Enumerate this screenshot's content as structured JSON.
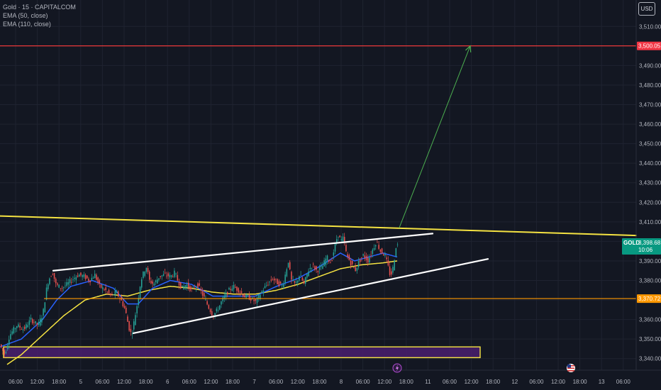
{
  "legend": {
    "symbol": "Gold · 15 · CAPITALCOM",
    "ema1": "EMA (50, close)",
    "ema2": "EMA (110, close)"
  },
  "currency_button": "USD",
  "colors": {
    "background": "#131722",
    "grid": "#1f2330",
    "bull": "#26a69a",
    "bear": "#ef5350",
    "ema50": "#2962ff",
    "ema110": "#f5e342",
    "trendline": "#ffffff",
    "resistance": "#f5e342",
    "target": "#ff3b3b",
    "support": "#ff9800",
    "arrow": "#4caf50",
    "zone": "#4a1f6e"
  },
  "chart_data": {
    "type": "candlestick",
    "ylim": [
      3337,
      3517
    ],
    "y_ticks": [
      "3,340.00",
      "3,350.00",
      "3,360.00",
      "3,370.00",
      "3,380.00",
      "3,390.00",
      "3,400.00",
      "3,410.00",
      "3,420.00",
      "3,430.00",
      "3,440.00",
      "3,450.00",
      "3,460.00",
      "3,470.00",
      "3,480.00",
      "3,490.00",
      "3,500.00",
      "3,510.00"
    ],
    "x_ticks": [
      "06:00",
      "12:00",
      "18:00",
      "5",
      "06:00",
      "12:00",
      "18:00",
      "6",
      "06:00",
      "12:00",
      "18:00",
      "7",
      "06:00",
      "12:00",
      "18:00",
      "8",
      "06:00",
      "12:00",
      "18:00",
      "11",
      "06:00",
      "12:00",
      "18:00",
      "12",
      "06:00",
      "12:00",
      "18:00",
      "13",
      "06:00"
    ],
    "price_labels": [
      {
        "name": "GOLD",
        "value": 3398.68,
        "text": "3,398.68",
        "countdown": "10:06"
      },
      {
        "name": "target",
        "value": 3500.05,
        "text": "3,500.05"
      },
      {
        "name": "support",
        "value": 3370.72,
        "text": "3,370.72"
      }
    ],
    "path_points": [
      [
        0,
        3348
      ],
      [
        8,
        3342
      ],
      [
        15,
        3352
      ],
      [
        25,
        3357
      ],
      [
        35,
        3355
      ],
      [
        45,
        3360
      ],
      [
        55,
        3357
      ],
      [
        62,
        3363
      ],
      [
        68,
        3378
      ],
      [
        72,
        3382
      ],
      [
        76,
        3384
      ],
      [
        80,
        3378
      ],
      [
        88,
        3376
      ],
      [
        96,
        3378
      ],
      [
        105,
        3381
      ],
      [
        112,
        3383
      ],
      [
        120,
        3382
      ],
      [
        128,
        3380
      ],
      [
        135,
        3383
      ],
      [
        142,
        3377
      ],
      [
        150,
        3375
      ],
      [
        158,
        3372
      ],
      [
        165,
        3374
      ],
      [
        172,
        3370
      ],
      [
        178,
        3365
      ],
      [
        183,
        3356
      ],
      [
        187,
        3352
      ],
      [
        191,
        3360
      ],
      [
        196,
        3370
      ],
      [
        200,
        3380
      ],
      [
        205,
        3385
      ],
      [
        208,
        3387
      ],
      [
        212,
        3380
      ],
      [
        218,
        3378
      ],
      [
        226,
        3382
      ],
      [
        234,
        3383
      ],
      [
        242,
        3382
      ],
      [
        248,
        3384
      ],
      [
        252,
        3380
      ],
      [
        258,
        3376
      ],
      [
        264,
        3378
      ],
      [
        272,
        3375
      ],
      [
        280,
        3378
      ],
      [
        288,
        3372
      ],
      [
        296,
        3366
      ],
      [
        302,
        3362
      ],
      [
        308,
        3365
      ],
      [
        315,
        3370
      ],
      [
        322,
        3374
      ],
      [
        330,
        3377
      ],
      [
        338,
        3375
      ],
      [
        346,
        3372
      ],
      [
        354,
        3371
      ],
      [
        362,
        3369
      ],
      [
        370,
        3374
      ],
      [
        378,
        3378
      ],
      [
        386,
        3381
      ],
      [
        392,
        3379
      ],
      [
        400,
        3377
      ],
      [
        408,
        3390
      ],
      [
        412,
        3380
      ],
      [
        418,
        3378
      ],
      [
        424,
        3383
      ],
      [
        430,
        3378
      ],
      [
        436,
        3385
      ],
      [
        442,
        3388
      ],
      [
        448,
        3385
      ],
      [
        456,
        3387
      ],
      [
        462,
        3392
      ],
      [
        468,
        3389
      ],
      [
        474,
        3398
      ],
      [
        478,
        3404
      ],
      [
        482,
        3400
      ],
      [
        486,
        3402
      ],
      [
        490,
        3393
      ],
      [
        496,
        3389
      ],
      [
        502,
        3385
      ],
      [
        508,
        3390
      ],
      [
        514,
        3393
      ],
      [
        520,
        3390
      ],
      [
        526,
        3395
      ],
      [
        532,
        3400
      ],
      [
        538,
        3395
      ],
      [
        544,
        3393
      ],
      [
        548,
        3388
      ],
      [
        552,
        3382
      ],
      [
        556,
        3387
      ],
      [
        560,
        3398
      ]
    ],
    "ema50_points": [
      [
        0,
        3346
      ],
      [
        30,
        3350
      ],
      [
        60,
        3360
      ],
      [
        80,
        3370
      ],
      [
        100,
        3377
      ],
      [
        130,
        3380
      ],
      [
        160,
        3376
      ],
      [
        180,
        3368
      ],
      [
        195,
        3368
      ],
      [
        215,
        3376
      ],
      [
        240,
        3380
      ],
      [
        270,
        3378
      ],
      [
        300,
        3372
      ],
      [
        330,
        3372
      ],
      [
        360,
        3372
      ],
      [
        390,
        3377
      ],
      [
        420,
        3381
      ],
      [
        450,
        3387
      ],
      [
        480,
        3394
      ],
      [
        500,
        3390
      ],
      [
        520,
        3392
      ],
      [
        540,
        3394
      ],
      [
        560,
        3392
      ]
    ],
    "ema110_points": [
      [
        10,
        3337
      ],
      [
        30,
        3342
      ],
      [
        60,
        3352
      ],
      [
        90,
        3362
      ],
      [
        120,
        3370
      ],
      [
        150,
        3373
      ],
      [
        180,
        3372
      ],
      [
        210,
        3375
      ],
      [
        240,
        3377
      ],
      [
        270,
        3376
      ],
      [
        300,
        3374
      ],
      [
        330,
        3373
      ],
      [
        360,
        3373
      ],
      [
        390,
        3375
      ],
      [
        420,
        3378
      ],
      [
        450,
        3382
      ],
      [
        480,
        3386
      ],
      [
        510,
        3388
      ],
      [
        540,
        3389
      ],
      [
        560,
        3390
      ]
    ],
    "drawings": {
      "resistance_line": [
        [
          0,
          3413
        ],
        [
          897,
          3403
        ]
      ],
      "channel_upper": [
        [
          75,
          3385
        ],
        [
          610,
          3404
        ]
      ],
      "channel_lower": [
        [
          188,
          3353
        ],
        [
          688,
          3391
        ]
      ],
      "arrow": [
        [
          563,
          3407
        ],
        [
          663,
          3500
        ]
      ],
      "target_line": 3500.05,
      "support_line": 3370.72,
      "zone": {
        "x": [
          5,
          677
        ],
        "y": [
          3340.5,
          3346
        ]
      }
    },
    "events": [
      {
        "name": "lightning-event",
        "x": 560
      },
      {
        "name": "us-flag-event",
        "x": 805
      }
    ]
  }
}
